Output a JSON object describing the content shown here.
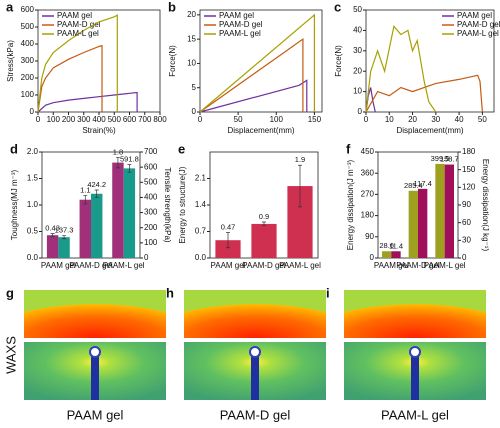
{
  "chart_data": [
    {
      "panel_label": "a",
      "type": "line",
      "xlabel": "Strain(%)",
      "ylabel": "Stress(kPa)",
      "xlim": [
        0,
        800
      ],
      "xticks": [
        0,
        100,
        200,
        300,
        400,
        500,
        600,
        700,
        800
      ],
      "ylim": [
        0,
        600
      ],
      "yticks": [
        0,
        100,
        200,
        300,
        400,
        500,
        600
      ],
      "legend": "upper left",
      "series": [
        {
          "name": "PAAM gel",
          "color": "#7030a0",
          "x": [
            0,
            50,
            100,
            200,
            300,
            400,
            500,
            600,
            650,
            650
          ],
          "values": [
            0,
            40,
            55,
            70,
            80,
            90,
            100,
            110,
            115,
            0
          ]
        },
        {
          "name": "PAAM-D gel",
          "color": "#c55a11",
          "x": [
            0,
            25,
            50,
            100,
            200,
            300,
            400,
            420,
            420
          ],
          "values": [
            0,
            150,
            200,
            260,
            310,
            350,
            385,
            390,
            0
          ]
        },
        {
          "name": "PAAM-L gel",
          "color": "#a8a000",
          "x": [
            0,
            25,
            50,
            100,
            200,
            300,
            400,
            500,
            520,
            520
          ],
          "values": [
            0,
            200,
            280,
            350,
            420,
            480,
            530,
            560,
            570,
            0
          ]
        }
      ]
    },
    {
      "panel_label": "b",
      "type": "line",
      "xlabel": "Displacement(mm)",
      "ylabel": "Force(N)",
      "xlim": [
        0,
        160
      ],
      "xticks": [
        0,
        50,
        100,
        150
      ],
      "ylim": [
        0,
        21
      ],
      "yticks": [
        0,
        5,
        10,
        15,
        20
      ],
      "legend": "upper left",
      "series": [
        {
          "name": "PAAM gel",
          "color": "#7030a0",
          "x": [
            0,
            130,
            140,
            140
          ],
          "values": [
            0,
            5.5,
            6.5,
            0
          ]
        },
        {
          "name": "PAAM-D gel",
          "color": "#c55a11",
          "x": [
            0,
            135,
            135
          ],
          "values": [
            0,
            15,
            0
          ]
        },
        {
          "name": "PAAM-L gel",
          "color": "#a8a000",
          "x": [
            0,
            150,
            150
          ],
          "values": [
            0,
            20,
            0
          ]
        }
      ]
    },
    {
      "panel_label": "c",
      "type": "line",
      "xlabel": "Displacement(mm)",
      "ylabel": "Force(N)",
      "xlim": [
        0,
        55
      ],
      "xticks": [
        0,
        10,
        20,
        30,
        40,
        50
      ],
      "ylim": [
        0,
        50
      ],
      "yticks": [
        0,
        10,
        20,
        30,
        40,
        50
      ],
      "legend": "upper right",
      "series": [
        {
          "name": "PAAM gel",
          "color": "#7030a0",
          "x": [
            0,
            1,
            2,
            3,
            4
          ],
          "values": [
            0,
            8,
            12,
            5,
            0
          ]
        },
        {
          "name": "PAAM-D gel",
          "color": "#c55a11",
          "x": [
            0,
            5,
            10,
            15,
            20,
            30,
            40,
            48,
            49,
            50
          ],
          "values": [
            0,
            10,
            8,
            12,
            10,
            14,
            16,
            18,
            15,
            0
          ]
        },
        {
          "name": "PAAM-L gel",
          "color": "#a8a000",
          "x": [
            0,
            2,
            5,
            8,
            12,
            15,
            18,
            20,
            22,
            25,
            27,
            30
          ],
          "values": [
            0,
            20,
            30,
            20,
            42,
            38,
            40,
            30,
            35,
            15,
            5,
            0
          ]
        }
      ]
    },
    {
      "panel_label": "d",
      "type": "bar",
      "ylabel": "Toughness(MJ m⁻³)",
      "y2label": "Tensile strength(kPa)",
      "categories": [
        "PAAM gel",
        "PAAM-D gel",
        "PAAM-L gel"
      ],
      "ylim": [
        0,
        2.0
      ],
      "yticks": [
        {
          "value": 0,
          "label": "0.0"
        },
        0.5,
        {
          "value": 1,
          "label": "1.0"
        },
        1.5,
        {
          "value": 2,
          "label": "2.0"
        }
      ],
      "y2lim": [
        0,
        700
      ],
      "y2ticks": [
        0,
        100,
        200,
        300,
        400,
        500,
        600,
        700
      ],
      "series": [
        {
          "name": "Toughness",
          "color": "#a0307a",
          "values": [
            0.43,
            1.1,
            1.8
          ],
          "errors": [
            0.03,
            0.08,
            0.1
          ]
        },
        {
          "name": "Tensile strength",
          "color": "#1a9a8a",
          "axis": "y2",
          "values": [
            137.3,
            424.2,
            591.8
          ],
          "errors": [
            10,
            25,
            25
          ]
        }
      ]
    },
    {
      "panel_label": "e",
      "type": "bar",
      "ylabel": "Energy to structure(J)",
      "categories": [
        "PAAM gel",
        "PAAM-D gel",
        "PAAM-L gel"
      ],
      "ylim": [
        0,
        2.8
      ],
      "yticks": [
        {
          "value": 0,
          "label": "0.0"
        },
        0.7,
        1.4,
        2.1
      ],
      "series": [
        {
          "color": "#d03050",
          "values": [
            0.47,
            0.9,
            1.9
          ],
          "errors": [
            0.2,
            0.05,
            0.55
          ]
        }
      ]
    },
    {
      "panel_label": "f",
      "type": "bar",
      "ylabel": "Energy dissipation(J m⁻³)",
      "y2label": "Energy dissipation(J kg⁻¹)",
      "categories": [
        "PAAM gel",
        "PAAM-D gel",
        "PAAM-L gel"
      ],
      "ylim": [
        0,
        450
      ],
      "yticks": [
        0,
        90,
        180,
        270,
        360,
        450
      ],
      "y2lim": [
        0,
        180
      ],
      "y2ticks": [
        0,
        30,
        60,
        90,
        120,
        150,
        180
      ],
      "series": [
        {
          "name": "Energy dissipation (volume)",
          "color": "#a0a020",
          "values": [
            28.6,
            285.4,
            399.5
          ]
        },
        {
          "name": "Energy dissipation (mass)",
          "color": "#a0105a",
          "axis": "y2",
          "values": [
            11.4,
            117.4,
            158.7
          ]
        }
      ]
    }
  ],
  "waxs": {
    "row_label": "WAXS",
    "panels": [
      {
        "panel_label": "g",
        "caption": "PAAM gel"
      },
      {
        "panel_label": "h",
        "caption": "PAAM-D gel"
      },
      {
        "panel_label": "i",
        "caption": "PAAM-L gel"
      }
    ]
  }
}
